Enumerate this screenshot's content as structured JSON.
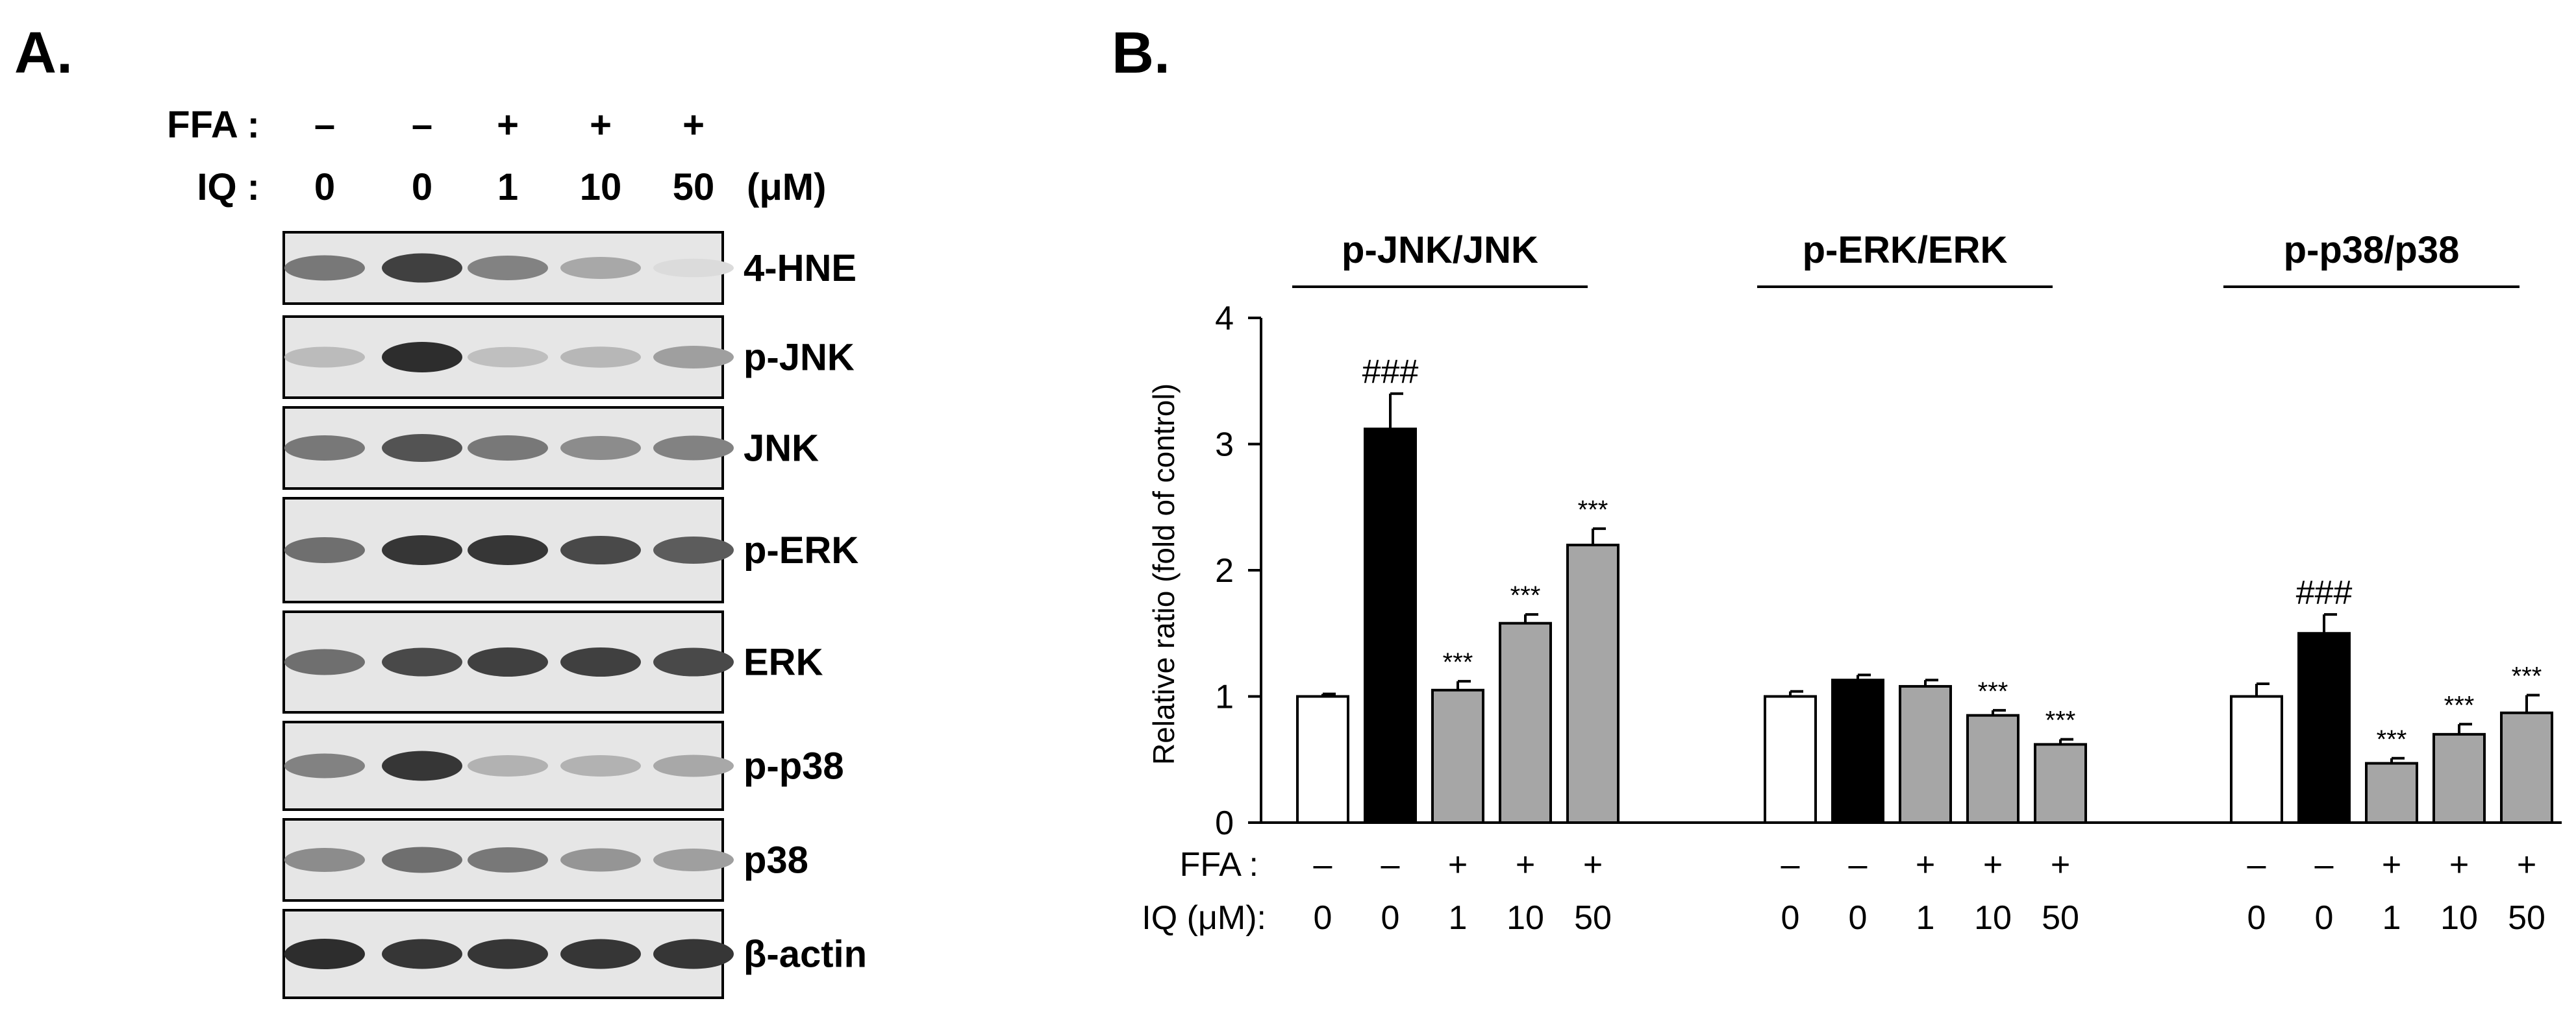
{
  "panel_a": {
    "letter": "A.",
    "ffa_label": "FFA :",
    "iq_label": "IQ :",
    "unit": "(μM)",
    "ffa_signs": [
      "–",
      "–",
      "+",
      "+",
      "+"
    ],
    "iq_doses": [
      "0",
      "0",
      "1",
      "10",
      "50"
    ],
    "blots": [
      {
        "label": "4-HNE",
        "intensities": [
          0.55,
          0.85,
          0.5,
          0.3,
          0.03
        ]
      },
      {
        "label": "p-JNK",
        "intensities": [
          0.2,
          0.95,
          0.18,
          0.22,
          0.35
        ]
      },
      {
        "label": "JNK",
        "intensities": [
          0.55,
          0.75,
          0.55,
          0.45,
          0.5
        ]
      },
      {
        "label": "p-ERK",
        "intensities": [
          0.6,
          0.9,
          0.9,
          0.8,
          0.7
        ]
      },
      {
        "label": "ERK",
        "intensities": [
          0.6,
          0.8,
          0.85,
          0.85,
          0.8
        ]
      },
      {
        "label": "p-p38",
        "intensities": [
          0.5,
          0.9,
          0.25,
          0.25,
          0.3
        ]
      },
      {
        "label": "p38",
        "intensities": [
          0.45,
          0.6,
          0.55,
          0.4,
          0.35
        ]
      },
      {
        "label": "β-actin",
        "intensities": [
          0.95,
          0.9,
          0.9,
          0.9,
          0.9
        ]
      }
    ]
  },
  "panel_b": {
    "letter": "B.",
    "ylabel": "Relative ratio (fold of control)",
    "ffa_label": "FFA :",
    "iq_label": "IQ (μM):",
    "ffa_signs": [
      "–",
      "–",
      "+",
      "+",
      "+"
    ],
    "iq_doses": [
      "0",
      "0",
      "1",
      "10",
      "50"
    ]
  },
  "colors": {
    "control": "#ffffff",
    "ffa": "#000000",
    "treated": "#a6a6a6"
  },
  "chart_data": {
    "type": "bar",
    "ylabel": "Relative ratio (fold of control)",
    "ylim": [
      0,
      4
    ],
    "yticks": [
      "0",
      "1",
      "2",
      "3",
      "4"
    ],
    "grid": false,
    "groups": [
      {
        "title": "p-JNK/JNK",
        "values": [
          1.0,
          3.12,
          1.05,
          1.58,
          2.2
        ],
        "errors": [
          0.02,
          0.28,
          0.07,
          0.07,
          0.13
        ],
        "marks": [
          "",
          "###",
          "***",
          "***",
          "***"
        ]
      },
      {
        "title": "p-ERK/ERK",
        "values": [
          1.0,
          1.13,
          1.08,
          0.85,
          0.62
        ],
        "errors": [
          0.04,
          0.04,
          0.05,
          0.04,
          0.04
        ],
        "marks": [
          "",
          "",
          "",
          "***",
          "***"
        ]
      },
      {
        "title": "p-p38/p38",
        "values": [
          1.0,
          1.5,
          0.47,
          0.7,
          0.87
        ],
        "errors": [
          0.1,
          0.15,
          0.04,
          0.08,
          0.14
        ],
        "marks": [
          "",
          "###",
          "***",
          "***",
          "***"
        ]
      }
    ]
  }
}
